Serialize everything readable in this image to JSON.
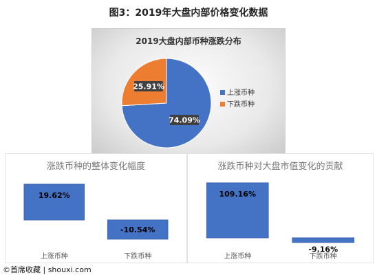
{
  "figure_title": "图3：2019年大盘内部价格变化数据",
  "colors": {
    "up": "#4472C4",
    "down": "#ED7D31",
    "bar": "#4472C4"
  },
  "chart_data": [
    {
      "type": "pie",
      "title": "2019大盘内部币种涨跌分布",
      "slices": [
        {
          "name": "上涨币种",
          "value": 74.09,
          "label": "74.09%"
        },
        {
          "name": "下跌币种",
          "value": 25.91,
          "label": "25.91%"
        }
      ],
      "legend": "right"
    },
    {
      "type": "bar",
      "title": "涨跌币种的整体变化幅度",
      "categories": [
        "上涨币种",
        "下跌币种"
      ],
      "values": [
        19.62,
        -10.54
      ],
      "data_labels": [
        "19.62%",
        "-10.54%"
      ]
    },
    {
      "type": "bar",
      "title": "涨跌币种对大盘市值变化的贡献",
      "categories": [
        "上涨币种",
        "下跌币种"
      ],
      "values": [
        109.16,
        -9.16
      ],
      "data_labels": [
        "109.16%",
        "-9.16%"
      ]
    }
  ],
  "watermark": "©首席收藏 | shouxi.com"
}
